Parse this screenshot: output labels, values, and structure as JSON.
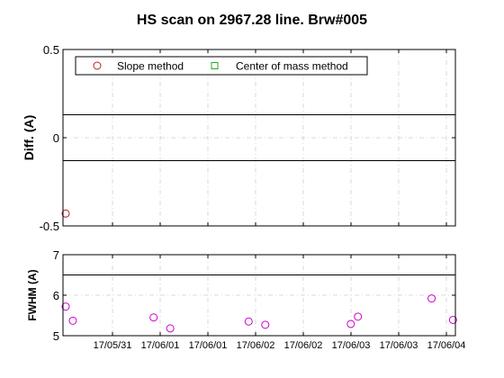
{
  "title": "HS scan on 2967.28 line. Brw#005",
  "chart_data": [
    {
      "type": "scatter",
      "title": "HS scan on 2967.28 line. Brw#005",
      "ylabel": "Diff.  (A)",
      "ylim": [
        -0.5,
        0.5
      ],
      "y_ticks": [
        "-0.5",
        "0",
        "0.5"
      ],
      "grid": true,
      "legend_placement": "top-left",
      "reference_lines": [
        0.13,
        -0.13
      ],
      "series": [
        {
          "name": "Slope method",
          "marker": "circle",
          "color": "#b22222",
          "x": [
            0.0
          ],
          "y": [
            -0.43
          ]
        },
        {
          "name": "Center of mass method",
          "marker": "square",
          "color": "#22aa22",
          "x": [],
          "y": []
        }
      ]
    },
    {
      "type": "scatter",
      "ylabel": "FWHM (A)",
      "ylim": [
        5,
        7
      ],
      "y_ticks": [
        "5",
        "6",
        "7"
      ],
      "grid": true,
      "reference_lines": [
        6.5
      ],
      "x_tick_labels": [
        "17/05/31",
        "17/06/01",
        "17/06/01",
        "17/06/02",
        "17/06/02",
        "17/06/03",
        "17/06/03",
        "17/06/04"
      ],
      "series": [
        {
          "marker": "circle",
          "color": "#cc00cc",
          "x": [
            0.0,
            0.15,
            1.85,
            2.2,
            3.85,
            4.2,
            6.0,
            6.15,
            7.7,
            8.15
          ],
          "y": [
            5.72,
            5.37,
            5.45,
            5.18,
            5.35,
            5.27,
            5.29,
            5.47,
            5.92,
            5.39
          ]
        }
      ]
    }
  ]
}
